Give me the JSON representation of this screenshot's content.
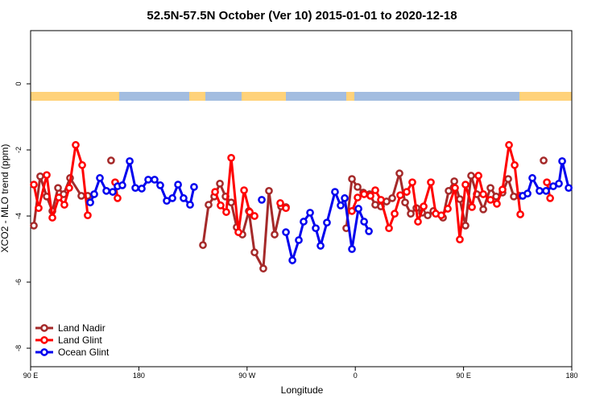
{
  "chart_data": {
    "type": "line",
    "title": "52.5N-57.5N October (Ver 10)   2015-01-01 to 2020-12-18",
    "x_label": "Longitude",
    "y_label": "XCO2 - MLO trend (ppm)",
    "xlim": [
      90,
      540
    ],
    "ylim": [
      -8.56,
      1.61
    ],
    "xticks": [
      {
        "value": 90,
        "label": "90 E"
      },
      180,
      {
        "value": 270,
        "label": "90 W"
      },
      {
        "value": 360,
        "label": "0"
      },
      {
        "value": 450,
        "label": "90 E"
      },
      {
        "value": 540,
        "label": "180"
      }
    ],
    "yticks": [
      0,
      -2,
      -4,
      -6,
      -8
    ],
    "legend": "bottom-left",
    "series": [
      {
        "name": "Land Nadir",
        "color": "#a52a2a",
        "x": [
          92.7,
          98.0,
          103.4,
          108.1,
          112.8,
          117.5,
          122.8,
          132.2,
          137.5,
          null,
          156.9,
          null,
          233.3,
          238.0,
          242.7,
          247.4,
          252.1,
          256.8,
          261.4,
          266.1,
          271.5,
          276.2,
          283.5,
          288.2,
          292.9,
          298.3,
          302.3,
          null,
          352.5,
          357.2,
          361.9,
          366.6,
          371.9,
          376.6,
          381.3,
          386.0,
          390.7,
          396.7,
          401.4,
          406.1,
          410.8,
          415.5,
          420.2,
          424.9,
          432.9,
          437.6,
          442.3,
          446.9,
          451.6,
          456.3,
          461.0,
          466.4,
          472.4,
          477.1,
          482.4,
          487.1,
          491.8,
          496.5,
          null,
          516.6
        ],
        "values": [
          -4.29,
          -2.8,
          -3.41,
          -3.85,
          -3.15,
          -3.34,
          -2.85,
          -3.39,
          -3.39,
          null,
          -2.32,
          null,
          -4.88,
          -3.66,
          -3.41,
          -3.02,
          -3.41,
          -3.59,
          -4.34,
          -4.56,
          -3.85,
          -5.1,
          -5.59,
          -3.24,
          -4.56,
          -3.71,
          -3.73,
          null,
          -4.37,
          -2.88,
          -3.12,
          -3.29,
          -3.34,
          -3.66,
          -3.71,
          -3.56,
          -3.46,
          -2.71,
          -3.59,
          -3.93,
          -3.76,
          -3.9,
          -3.98,
          -3.85,
          -4.05,
          -3.24,
          -2.95,
          -3.49,
          -4.29,
          -2.78,
          -3.34,
          -3.8,
          -3.15,
          -3.41,
          -3.29,
          -2.88,
          -3.41,
          -3.39,
          null,
          -2.32
        ]
      },
      {
        "name": "Land Glint",
        "color": "#ff0000",
        "x": [
          92.7,
          96.7,
          103.4,
          108.1,
          113.4,
          118.1,
          122.1,
          127.5,
          132.9,
          137.5,
          null,
          160.3,
          162.3,
          null,
          243.4,
          248.0,
          252.7,
          256.8,
          262.8,
          267.5,
          272.2,
          276.2,
          null,
          297.6,
          302.3,
          null,
          357.2,
          361.9,
          367.3,
          372.6,
          376.6,
          381.3,
          388.0,
          392.7,
          397.4,
          402.7,
          407.4,
          412.1,
          416.8,
          422.8,
          426.9,
          431.5,
          436.9,
          442.9,
          446.9,
          451.6,
          457.0,
          462.4,
          466.4,
          472.4,
          477.7,
          482.4,
          487.8,
          492.5,
          497.2,
          null,
          519.3,
          522.0
        ],
        "values": [
          -3.05,
          -3.76,
          -2.76,
          -4.05,
          -3.44,
          -3.66,
          -3.15,
          -1.85,
          -2.46,
          -3.98,
          null,
          -2.98,
          -3.46,
          null,
          -3.27,
          -3.68,
          -3.88,
          -2.24,
          -4.49,
          -3.22,
          -3.88,
          -4.0,
          null,
          -3.61,
          -3.76,
          null,
          -3.85,
          -3.44,
          -3.34,
          -3.39,
          -3.22,
          -3.51,
          -4.37,
          -3.93,
          -3.37,
          -3.27,
          -2.98,
          -4.17,
          -3.71,
          -2.98,
          -3.93,
          -3.98,
          -3.78,
          -3.15,
          -4.71,
          -3.05,
          -3.73,
          -2.78,
          -3.34,
          -3.51,
          -3.63,
          -3.2,
          -1.85,
          -2.46,
          -3.95,
          null,
          -2.98,
          -3.46
        ]
      },
      {
        "name": "Ocean Glint",
        "color": "#0000ee",
        "x": [
          139.6,
          142.9,
          147.6,
          153.0,
          158.3,
          162.3,
          166.3,
          172.4,
          177.1,
          182.4,
          187.8,
          193.1,
          197.8,
          203.2,
          207.9,
          212.6,
          217.2,
          222.6,
          225.9,
          null,
          282.2,
          null,
          302.3,
          307.7,
          313.0,
          317.0,
          322.4,
          327.1,
          331.1,
          336.4,
          343.1,
          347.8,
          351.2,
          357.2,
          362.6,
          367.3,
          371.3,
          null,
          499.2,
          503.2,
          507.2,
          513.2,
          518.6,
          524.6,
          529.3,
          532.0,
          537.4
        ],
        "values": [
          -3.59,
          -3.34,
          -2.85,
          -3.24,
          -3.27,
          -3.1,
          -3.07,
          -2.34,
          -3.15,
          -3.17,
          -2.9,
          -2.9,
          -3.07,
          -3.54,
          -3.46,
          -3.05,
          -3.46,
          -3.66,
          -3.12,
          null,
          -3.51,
          null,
          -4.49,
          -5.34,
          -4.73,
          -4.17,
          -3.9,
          -4.37,
          -4.9,
          -4.2,
          -3.27,
          -3.68,
          -3.46,
          -5.0,
          -3.78,
          -4.17,
          -4.46,
          null,
          -3.39,
          -3.32,
          -2.85,
          -3.24,
          -3.24,
          -3.1,
          -3.02,
          -2.34,
          -3.15
        ]
      }
    ]
  }
}
